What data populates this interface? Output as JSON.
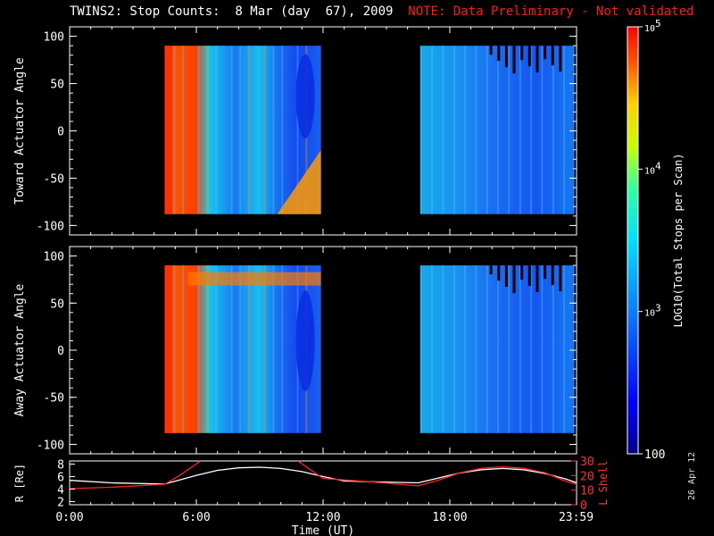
{
  "title": {
    "main": "TWINS2: Stop Counts:  8 Mar (day  67), 2009",
    "note": "NOTE: Data Preliminary - Not validated"
  },
  "date_stamp": "26 Apr 12",
  "colors": {
    "background": "#000000",
    "note": "#ff1a1a",
    "r_line": "#ffffff",
    "l_line": "#ff2020"
  },
  "chart_data": [
    {
      "type": "heatmap",
      "ylabel": "Toward Actuator Angle",
      "y_ticks": [
        "100",
        "50",
        "0",
        "-50",
        "-100"
      ],
      "y_tick_values": [
        100,
        50,
        0,
        -50,
        -100
      ],
      "ylim": [
        -110,
        110
      ],
      "x_ticks": [
        "0:00",
        "6:00",
        "12:00",
        "18:00",
        "23:59"
      ],
      "data_intervals_hours": [
        [
          4.5,
          11.9
        ],
        [
          16.6,
          23.9
        ]
      ],
      "angle_range": [
        -88,
        90
      ],
      "colorscale": "rainbow (blue=low, red=high)"
    },
    {
      "type": "heatmap",
      "ylabel": "Away Actuator Angle",
      "y_ticks": [
        "100",
        "50",
        "0",
        "-50",
        "-100"
      ],
      "y_tick_values": [
        100,
        50,
        0,
        -50,
        -100
      ],
      "ylim": [
        -110,
        110
      ],
      "x_ticks": [
        "0:00",
        "6:00",
        "12:00",
        "18:00",
        "23:59"
      ],
      "data_intervals_hours": [
        [
          4.5,
          11.9
        ],
        [
          16.6,
          23.9
        ]
      ],
      "angle_range": [
        -88,
        90
      ],
      "colorscale": "rainbow (blue=low, red=high)"
    },
    {
      "type": "line",
      "xlabel": "Time (UT)",
      "x_ticks": [
        "0:00",
        "6:00",
        "12:00",
        "18:00",
        "23:59"
      ],
      "x_tick_values": [
        0,
        6,
        12,
        18,
        23.98
      ],
      "xlim": [
        0,
        24
      ],
      "left_axis": {
        "label": "R [Re]",
        "ticks": [
          "8",
          "6",
          "4",
          "2"
        ],
        "tick_values": [
          8,
          6,
          4,
          2
        ],
        "ylim": [
          1.5,
          8.5
        ]
      },
      "right_axis": {
        "label": "L Shell",
        "ticks": [
          "30",
          "20",
          "10",
          "0"
        ],
        "tick_values": [
          30,
          20,
          10,
          0
        ],
        "ylim": [
          0,
          30
        ]
      },
      "series": [
        {
          "axis": "left",
          "color": "#ffffff",
          "x": [
            0,
            2,
            4.5,
            6,
            7,
            8,
            9,
            10,
            11,
            12,
            13,
            14,
            16.5,
            17.5,
            18.5,
            19.5,
            20.5,
            21.5,
            22.5,
            23.5,
            24
          ],
          "y": [
            5.4,
            5.0,
            4.8,
            6.2,
            7.0,
            7.4,
            7.5,
            7.3,
            6.8,
            6.0,
            5.3,
            5.2,
            5.0,
            5.8,
            6.6,
            7.1,
            7.3,
            7.1,
            6.5,
            5.6,
            5.0
          ]
        },
        {
          "axis": "right",
          "color": "#ff2020",
          "x": [
            0,
            2,
            4.5,
            5.2,
            5.8,
            6.2
          ],
          "y": [
            11,
            12,
            14,
            20,
            26,
            30
          ]
        },
        {
          "axis": "right",
          "color": "#ff2020",
          "x": [
            10.8,
            11.4,
            12,
            13,
            14,
            16.5,
            17.5,
            18.5,
            19.5,
            20.5,
            21.5,
            22.5,
            23.5,
            24
          ],
          "y": [
            30,
            24,
            18,
            17,
            16,
            13,
            17,
            22,
            25,
            26,
            25,
            22,
            16,
            14
          ]
        }
      ]
    }
  ],
  "colorbar": {
    "label": "LOG10(Total Stops per Scan)",
    "ticks": [
      "10^5",
      "10^4",
      "10^3",
      "100"
    ],
    "tick_values": [
      5,
      4,
      3,
      2
    ],
    "range": [
      2,
      5
    ]
  }
}
